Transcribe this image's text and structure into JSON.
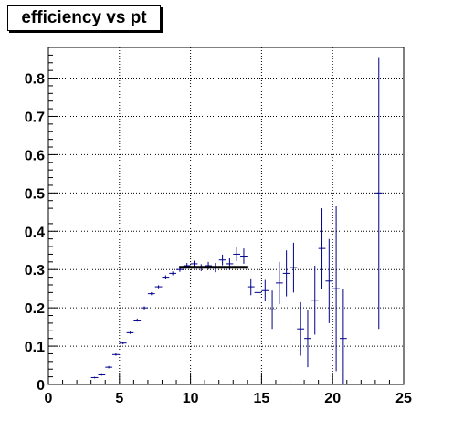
{
  "chart_data": {
    "type": "scatter",
    "title": "efficiency vs pt",
    "xlabel": "",
    "ylabel": "",
    "xlim": [
      0,
      25
    ],
    "ylim": [
      0,
      0.88
    ],
    "grid": true,
    "xticks": [
      "0",
      "5",
      "10",
      "15",
      "20",
      "25"
    ],
    "yticks": [
      "0",
      "0.1",
      "0.2",
      "0.3",
      "0.4",
      "0.5",
      "0.6",
      "0.7",
      "0.8"
    ],
    "series": [
      {
        "color": "#00008b",
        "points": [
          {
            "x": 3.25,
            "y": 0.018,
            "xerr": 0.25,
            "yerr": 0.002
          },
          {
            "x": 3.75,
            "y": 0.025,
            "xerr": 0.25,
            "yerr": 0.002
          },
          {
            "x": 4.25,
            "y": 0.045,
            "xerr": 0.25,
            "yerr": 0.003
          },
          {
            "x": 4.75,
            "y": 0.078,
            "xerr": 0.25,
            "yerr": 0.003
          },
          {
            "x": 5.25,
            "y": 0.108,
            "xerr": 0.25,
            "yerr": 0.003
          },
          {
            "x": 5.75,
            "y": 0.135,
            "xerr": 0.25,
            "yerr": 0.003
          },
          {
            "x": 6.25,
            "y": 0.168,
            "xerr": 0.25,
            "yerr": 0.004
          },
          {
            "x": 6.75,
            "y": 0.2,
            "xerr": 0.25,
            "yerr": 0.004
          },
          {
            "x": 7.25,
            "y": 0.237,
            "xerr": 0.25,
            "yerr": 0.004
          },
          {
            "x": 7.75,
            "y": 0.255,
            "xerr": 0.25,
            "yerr": 0.004
          },
          {
            "x": 8.25,
            "y": 0.28,
            "xerr": 0.25,
            "yerr": 0.005
          },
          {
            "x": 8.75,
            "y": 0.29,
            "xerr": 0.25,
            "yerr": 0.005
          },
          {
            "x": 9.25,
            "y": 0.3,
            "xerr": 0.25,
            "yerr": 0.006
          },
          {
            "x": 9.75,
            "y": 0.31,
            "xerr": 0.25,
            "yerr": 0.007
          },
          {
            "x": 10.25,
            "y": 0.315,
            "xerr": 0.25,
            "yerr": 0.008
          },
          {
            "x": 10.75,
            "y": 0.305,
            "xerr": 0.25,
            "yerr": 0.009
          },
          {
            "x": 11.25,
            "y": 0.31,
            "xerr": 0.25,
            "yerr": 0.01
          },
          {
            "x": 11.75,
            "y": 0.305,
            "xerr": 0.25,
            "yerr": 0.012
          },
          {
            "x": 12.25,
            "y": 0.325,
            "xerr": 0.25,
            "yerr": 0.014
          },
          {
            "x": 12.75,
            "y": 0.315,
            "xerr": 0.25,
            "yerr": 0.016
          },
          {
            "x": 13.25,
            "y": 0.34,
            "xerr": 0.25,
            "yerr": 0.018
          },
          {
            "x": 13.75,
            "y": 0.335,
            "xerr": 0.25,
            "yerr": 0.02
          },
          {
            "x": 14.25,
            "y": 0.255,
            "xerr": 0.25,
            "yerr": 0.022
          },
          {
            "x": 14.75,
            "y": 0.24,
            "xerr": 0.25,
            "yerr": 0.025
          },
          {
            "x": 15.25,
            "y": 0.245,
            "xerr": 0.25,
            "yerr": 0.028
          },
          {
            "x": 15.75,
            "y": 0.195,
            "xerr": 0.25,
            "yerr": 0.05
          },
          {
            "x": 16.25,
            "y": 0.265,
            "xerr": 0.25,
            "yerr": 0.055
          },
          {
            "x": 16.75,
            "y": 0.29,
            "xerr": 0.25,
            "yerr": 0.06
          },
          {
            "x": 17.25,
            "y": 0.305,
            "xerr": 0.25,
            "yerr": 0.065
          },
          {
            "x": 17.75,
            "y": 0.145,
            "xerr": 0.25,
            "yerr": 0.07
          },
          {
            "x": 18.25,
            "y": 0.12,
            "xerr": 0.25,
            "yerr": 0.075
          },
          {
            "x": 18.75,
            "y": 0.22,
            "xerr": 0.25,
            "yerr": 0.09
          },
          {
            "x": 19.25,
            "y": 0.355,
            "xerr": 0.25,
            "yerr": 0.105
          },
          {
            "x": 19.75,
            "y": 0.27,
            "xerr": 0.25,
            "yerr": 0.11
          },
          {
            "x": 20.25,
            "y": 0.25,
            "xerr": 0.25,
            "yerr": 0.215
          },
          {
            "x": 20.75,
            "y": 0.12,
            "xerr": 0.25,
            "yerr": 0.13
          },
          {
            "x": 23.25,
            "y": 0.5,
            "xerr": 0.25,
            "yerr": 0.355
          }
        ]
      }
    ],
    "plateau": {
      "x0": 9.2,
      "x1": 14.0,
      "y": 0.306,
      "color": "#000000"
    }
  }
}
